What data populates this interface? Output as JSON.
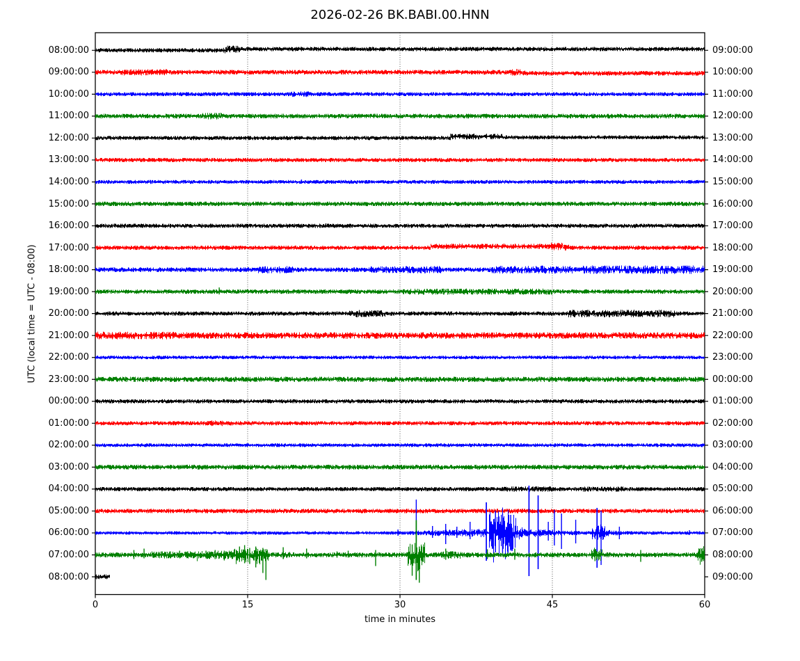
{
  "chart_data": {
    "type": "line",
    "subtype": "helicorder-dayplot",
    "title": "2026-02-26 BK.BABI.00.HNN",
    "xlabel": "time in minutes",
    "ylabel": "UTC (local time = UTC - 08:00)",
    "x_ticks": [
      0,
      15,
      30,
      45,
      60
    ],
    "x_range": [
      0,
      60
    ],
    "minutes_per_row": 60,
    "grid_minutes": [
      15,
      30,
      45
    ],
    "grid_on": true,
    "legend": "none",
    "trace_colors": [
      "#000000",
      "#ff0000",
      "#0000ff",
      "#008000"
    ],
    "rows": [
      {
        "left": "08:00:00",
        "right": "09:00:00",
        "color": 0,
        "noise": 2.4,
        "events": [
          {
            "s": 12.6,
            "e": 14.2,
            "a": 2
          },
          {
            "s": 13,
            "e": 60,
            "a": 0,
            "o": 1.8
          }
        ]
      },
      {
        "left": "09:00:00",
        "right": "10:00:00",
        "color": 1,
        "noise": 2.7,
        "events": [
          {
            "s": 2.5,
            "e": 7,
            "a": 1.2
          },
          {
            "s": 40.8,
            "e": 42.3,
            "a": 1.5
          },
          {
            "s": 42,
            "e": 60,
            "a": 0,
            "o": -1.5
          }
        ]
      },
      {
        "left": "10:00:00",
        "right": "11:00:00",
        "color": 2,
        "noise": 2.2,
        "events": [
          {
            "s": 19,
            "e": 21,
            "a": 1.2
          }
        ]
      },
      {
        "left": "11:00:00",
        "right": "12:00:00",
        "color": 3,
        "noise": 2.7,
        "events": [
          {
            "s": 10.5,
            "e": 12.5,
            "a": 1.5
          }
        ]
      },
      {
        "left": "12:00:00",
        "right": "13:00:00",
        "color": 0,
        "noise": 2.3,
        "events": [
          {
            "t": 35,
            "u": 4,
            "d": 2
          },
          {
            "s": 35,
            "e": 40,
            "a": 1.2,
            "o": 2.2
          },
          {
            "s": 40,
            "e": 60,
            "a": 0,
            "o": 1
          }
        ]
      },
      {
        "left": "13:00:00",
        "right": "14:00:00",
        "color": 1,
        "noise": 2.3,
        "events": []
      },
      {
        "left": "14:00:00",
        "right": "15:00:00",
        "color": 2,
        "noise": 2.1,
        "events": [
          {
            "t": 20.3,
            "u": 3.5,
            "d": 2.5
          }
        ]
      },
      {
        "left": "15:00:00",
        "right": "16:00:00",
        "color": 3,
        "noise": 2.6,
        "events": []
      },
      {
        "left": "16:00:00",
        "right": "17:00:00",
        "color": 0,
        "noise": 2.4,
        "events": [
          {
            "t": 22.7,
            "u": 3.5,
            "d": 2
          }
        ]
      },
      {
        "left": "17:00:00",
        "right": "18:00:00",
        "color": 1,
        "noise": 2.4,
        "events": [
          {
            "t": 31.2,
            "u": 4,
            "d": 2
          },
          {
            "s": 33,
            "e": 46,
            "a": 0.8,
            "o": 2
          },
          {
            "s": 44.8,
            "e": 46.6,
            "a": 1.6
          },
          {
            "t": 45.6,
            "u": 5,
            "d": 2
          }
        ]
      },
      {
        "left": "18:00:00",
        "right": "19:00:00",
        "color": 2,
        "noise": 2.7,
        "events": [
          {
            "s": 16,
            "e": 19.5,
            "a": 1.8
          },
          {
            "s": 27,
            "e": 34,
            "a": 1.8
          },
          {
            "s": 39,
            "e": 47,
            "a": 2.2
          },
          {
            "t": 44,
            "u": 6,
            "d": 4
          },
          {
            "s": 48,
            "e": 60,
            "a": 2.8
          }
        ]
      },
      {
        "left": "19:00:00",
        "right": "20:00:00",
        "color": 3,
        "noise": 2.5,
        "events": [
          {
            "t": 12.2,
            "u": 6,
            "d": 4
          },
          {
            "s": 30,
            "e": 45,
            "a": 1.2
          },
          {
            "t": 36,
            "u": 4,
            "d": 3
          }
        ]
      },
      {
        "left": "20:00:00",
        "right": "21:00:00",
        "color": 0,
        "noise": 2.4,
        "events": [
          {
            "s": 25,
            "e": 28.5,
            "a": 2.2
          },
          {
            "t": 26,
            "u": 4,
            "d": 3
          },
          {
            "s": 46.5,
            "e": 57,
            "a": 2.4
          },
          {
            "t": 53,
            "u": 4,
            "d": 3
          }
        ]
      },
      {
        "left": "21:00:00",
        "right": "22:00:00",
        "color": 1,
        "noise": 4,
        "events": [
          {
            "s": 0,
            "e": 8,
            "a": 0.8
          }
        ]
      },
      {
        "left": "22:00:00",
        "right": "23:00:00",
        "color": 2,
        "noise": 1.9,
        "events": [
          {
            "t": 53.6,
            "u": 4.5,
            "d": 2.5
          }
        ]
      },
      {
        "left": "23:00:00",
        "right": "00:00:00",
        "color": 3,
        "noise": 3.1,
        "events": []
      },
      {
        "left": "00:00:00",
        "right": "01:00:00",
        "color": 0,
        "noise": 2.3,
        "events": []
      },
      {
        "left": "01:00:00",
        "right": "02:00:00",
        "color": 1,
        "noise": 2.4,
        "events": [
          {
            "s": 11,
            "e": 12.5,
            "a": 1.2
          }
        ]
      },
      {
        "left": "02:00:00",
        "right": "03:00:00",
        "color": 2,
        "noise": 2,
        "events": []
      },
      {
        "left": "03:00:00",
        "right": "04:00:00",
        "color": 3,
        "noise": 2.8,
        "events": []
      },
      {
        "left": "04:00:00",
        "right": "05:00:00",
        "color": 0,
        "noise": 2.3,
        "events": [
          {
            "s": 40,
            "e": 45,
            "a": 0.8
          },
          {
            "s": 48,
            "e": 52,
            "a": 0.8
          }
        ]
      },
      {
        "left": "05:00:00",
        "right": "06:00:00",
        "color": 1,
        "noise": 2.5,
        "events": []
      },
      {
        "left": "06:00:00",
        "right": "07:00:00",
        "color": 2,
        "noise": 1.8,
        "events": [
          {
            "s": 29.5,
            "e": 38.5,
            "a": 4,
            "sh": "g"
          },
          {
            "t": 29.8,
            "u": 5,
            "d": 4
          },
          {
            "t": 31.6,
            "u": 48,
            "d": 12
          },
          {
            "t": 33.2,
            "u": 10,
            "d": 7
          },
          {
            "t": 34.5,
            "u": 13,
            "d": 16
          },
          {
            "t": 35.6,
            "u": 9,
            "d": 7
          },
          {
            "t": 36.9,
            "u": 16,
            "d": 9
          },
          {
            "t": 38.5,
            "u": 44,
            "d": 40
          },
          {
            "s": 38.7,
            "e": 41.4,
            "a": 24
          },
          {
            "t": 39.4,
            "u": 32,
            "d": 28
          },
          {
            "t": 40.1,
            "u": 28,
            "d": 32
          },
          {
            "t": 40.9,
            "u": 26,
            "d": 24
          },
          {
            "s": 41.4,
            "e": 49.5,
            "a": 5,
            "sh": "d"
          },
          {
            "t": 42.7,
            "u": 68,
            "d": 62
          },
          {
            "t": 43.6,
            "u": 54,
            "d": 52
          },
          {
            "t": 44.6,
            "u": 16,
            "d": 11
          },
          {
            "t": 45.2,
            "u": 33,
            "d": 18
          },
          {
            "t": 45.9,
            "u": 28,
            "d": 23
          },
          {
            "t": 47.3,
            "u": 19,
            "d": 15
          },
          {
            "s": 48.9,
            "e": 50.2,
            "a": 8
          },
          {
            "t": 49.4,
            "u": 36,
            "d": 50
          },
          {
            "t": 49.8,
            "u": 32,
            "d": 46
          },
          {
            "s": 50.2,
            "e": 53,
            "a": 2.5,
            "sh": "d"
          },
          {
            "t": 51.6,
            "u": 9,
            "d": 9
          },
          {
            "t": 58.5,
            "u": 4,
            "d": 3
          }
        ]
      },
      {
        "left": "07:00:00",
        "right": "08:00:00",
        "color": 3,
        "noise": 2.9,
        "events": [
          {
            "t": 3.8,
            "u": 7,
            "d": 6
          },
          {
            "t": 4.8,
            "u": 9,
            "d": 5
          },
          {
            "s": 5.5,
            "e": 10,
            "a": 1.6
          },
          {
            "t": 6.5,
            "u": 5,
            "d": 4
          },
          {
            "t": 7.4,
            "u": 5,
            "d": 5
          },
          {
            "t": 8.3,
            "u": 6,
            "d": 4
          },
          {
            "t": 9.1,
            "u": 5,
            "d": 4
          },
          {
            "s": 10,
            "e": 13.5,
            "a": 2.4
          },
          {
            "t": 10.9,
            "u": 6,
            "d": 5
          },
          {
            "t": 11.8,
            "u": 7,
            "d": 6
          },
          {
            "t": 12.7,
            "u": 6,
            "d": 8
          },
          {
            "s": 13.5,
            "e": 17,
            "a": 5
          },
          {
            "t": 14.2,
            "u": 12,
            "d": 10
          },
          {
            "t": 14.7,
            "u": 14,
            "d": 12
          },
          {
            "t": 15.2,
            "u": 10,
            "d": 13
          },
          {
            "t": 15.8,
            "u": 12,
            "d": 18
          },
          {
            "t": 16.5,
            "u": 10,
            "d": 26
          },
          {
            "t": 16.8,
            "u": 8,
            "d": 36
          },
          {
            "s": 18.4,
            "e": 19.6,
            "a": 2.5,
            "sh": "d"
          },
          {
            "t": 18.5,
            "u": 11,
            "d": 6
          },
          {
            "t": 20.8,
            "u": 9,
            "d": 5
          },
          {
            "t": 23.8,
            "u": 5,
            "d": 4
          },
          {
            "t": 24.9,
            "u": 6,
            "d": 4
          },
          {
            "t": 27.6,
            "u": 7,
            "d": 16
          },
          {
            "s": 30.7,
            "e": 32.4,
            "a": 12
          },
          {
            "t": 31.2,
            "u": 15,
            "d": 30
          },
          {
            "t": 31.6,
            "u": 50,
            "d": 36
          },
          {
            "t": 31.9,
            "u": 12,
            "d": 40
          },
          {
            "s": 33.8,
            "e": 36,
            "a": 2.2
          },
          {
            "t": 34.5,
            "u": 9,
            "d": 7
          },
          {
            "t": 38.6,
            "u": 8,
            "d": 6
          },
          {
            "t": 41.3,
            "u": 9,
            "d": 7
          },
          {
            "s": 48.8,
            "e": 49.9,
            "a": 5
          },
          {
            "t": 49.2,
            "u": 8,
            "d": 9
          },
          {
            "t": 53.7,
            "u": 7,
            "d": 10
          },
          {
            "s": 59.2,
            "e": 60,
            "a": 6
          },
          {
            "t": 59.7,
            "u": 9,
            "d": 10
          }
        ]
      },
      {
        "left": "08:00:00",
        "right": "09:00:00",
        "color": 0,
        "noise": 2.8,
        "span": [
          0,
          1.35
        ],
        "events": []
      }
    ]
  }
}
